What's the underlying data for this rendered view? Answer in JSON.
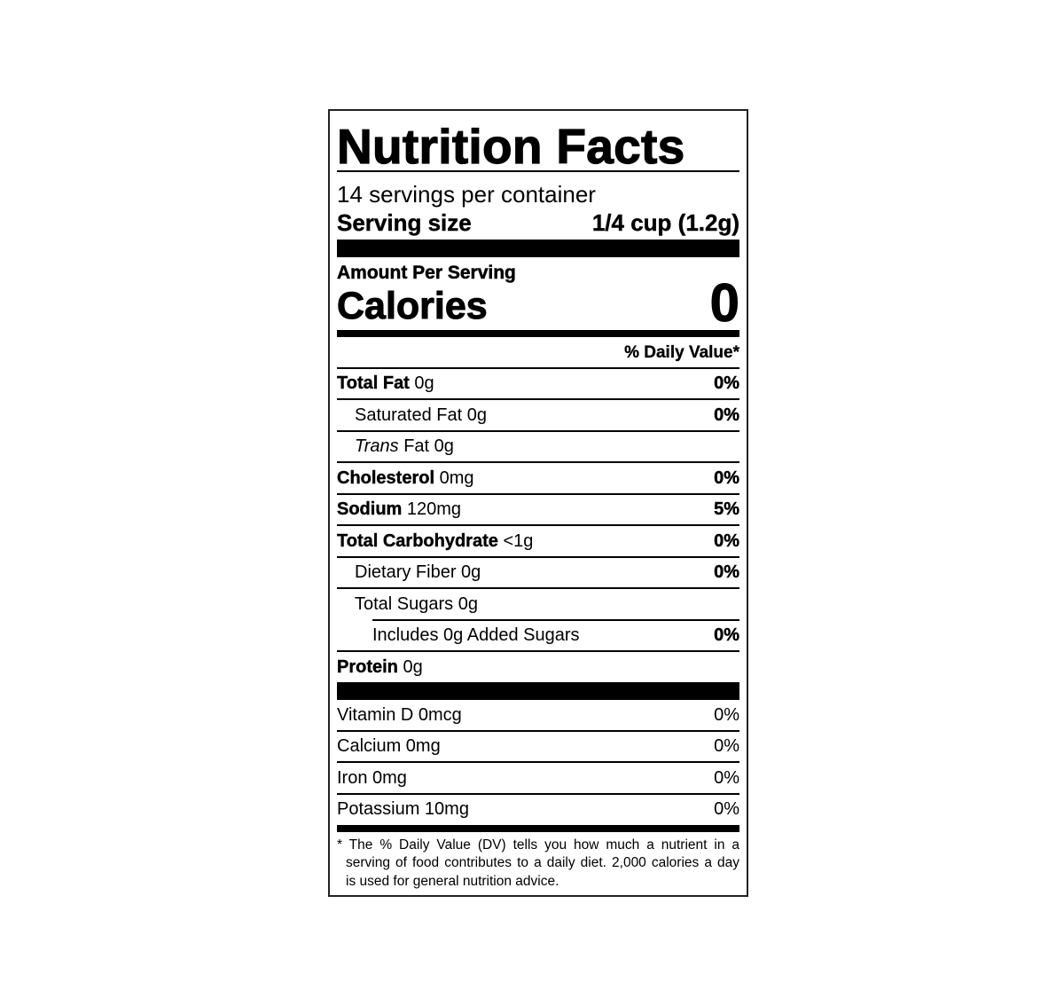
{
  "title": "Nutrition Facts",
  "servings_per_container": "14 servings per container",
  "serving_size_label": "Serving size",
  "serving_size_value": "1/4 cup (1.2g)",
  "amount_per_serving": "Amount Per Serving",
  "calories_label": "Calories",
  "calories_value": "0",
  "daily_value_header": "% Daily Value*",
  "nutrients": [
    {
      "name": "Total Fat",
      "amount": "0g",
      "dv": "0%"
    },
    {
      "name": "Saturated Fat 0g",
      "dv": "0%"
    },
    {
      "name_italic": "Trans",
      "name": "Fat 0g"
    },
    {
      "name": "Cholesterol",
      "amount": "0mg",
      "dv": "0%"
    },
    {
      "name": "Sodium",
      "amount": "120mg",
      "dv": "5%"
    },
    {
      "name": "Total Carbohydrate",
      "amount": "<1g",
      "dv": "0%"
    },
    {
      "name": "Dietary Fiber 0g",
      "dv": "0%"
    },
    {
      "name": "Total Sugars 0g"
    },
    {
      "name": "Includes 0g Added Sugars",
      "dv": "0%"
    },
    {
      "name": "Protein",
      "amount": "0g"
    }
  ],
  "vitamins": [
    {
      "name": "Vitamin D 0mcg",
      "dv": "0%"
    },
    {
      "name": "Calcium 0mg",
      "dv": "0%"
    },
    {
      "name": "Iron 0mg",
      "dv": "0%"
    },
    {
      "name": "Potassium 10mg",
      "dv": "0%"
    }
  ],
  "footnote_lines": [
    "* The % Daily Value (DV) tells you how much a nutrient in a",
    "serving of food contributes to a daily diet. 2,000 calories a day",
    "is used for general nutrition advice."
  ]
}
